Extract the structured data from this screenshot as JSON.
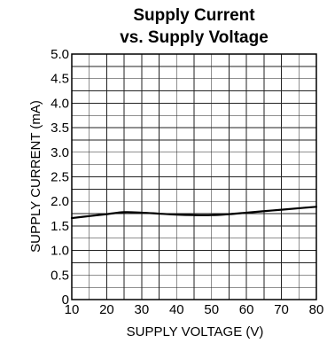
{
  "chart_data": {
    "type": "line",
    "title_line1": "Supply Current",
    "title_line2": "vs. Supply Voltage",
    "xlabel": "SUPPLY VOLTAGE (V)",
    "ylabel": "SUPPLY CURRENT (mA)",
    "xlim": [
      10,
      80
    ],
    "ylim": [
      0,
      5.0
    ],
    "x_ticks": [
      "10",
      "20",
      "30",
      "40",
      "50",
      "60",
      "70",
      "80"
    ],
    "y_ticks": [
      "0",
      "0.5",
      "1.0",
      "1.5",
      "2.0",
      "2.5",
      "3.0",
      "3.5",
      "4.0",
      "4.5",
      "5.0"
    ],
    "x_minor_step": 5,
    "y_minor_step": 0.25,
    "grid": true,
    "line_color": "#000000",
    "series": [
      {
        "x": [
          10,
          15,
          20,
          25,
          30,
          35,
          40,
          45,
          50,
          55,
          60,
          65,
          70,
          75,
          80
        ],
        "y": [
          1.66,
          1.7,
          1.74,
          1.78,
          1.77,
          1.75,
          1.73,
          1.72,
          1.72,
          1.74,
          1.77,
          1.8,
          1.83,
          1.86,
          1.89
        ]
      }
    ]
  }
}
